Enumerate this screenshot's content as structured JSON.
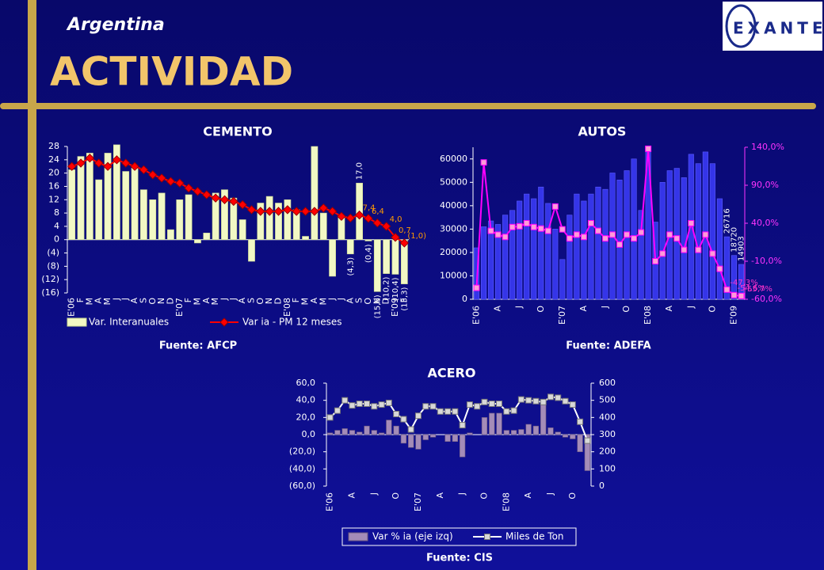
{
  "header": {
    "country": "Argentina",
    "title": "ACTIVIDAD",
    "logo": "EXANTE"
  },
  "chart_data": [
    {
      "type": "combo",
      "title": "CEMENTO",
      "source": "Fuente: AFCP",
      "legend": "bottom",
      "categories": [
        "E'06",
        "F",
        "M",
        "A",
        "M",
        "J",
        "J",
        "A",
        "S",
        "O",
        "N",
        "D",
        "E'07",
        "F",
        "M",
        "A",
        "M",
        "J",
        "J",
        "A",
        "S",
        "O",
        "N",
        "D",
        "E'08",
        "F",
        "M",
        "A",
        "M",
        "J",
        "J",
        "A",
        "S",
        "O",
        "N",
        "D",
        "E'09",
        "F"
      ],
      "ylim": [
        -16,
        28
      ],
      "yticks": [
        28,
        24,
        20,
        16,
        12,
        8,
        4,
        0,
        {
          "value": -4,
          "label": "(4)"
        },
        {
          "value": -8,
          "label": "(8)"
        },
        {
          "value": -12,
          "label": "(12)"
        },
        {
          "value": -16,
          "label": "(16)"
        }
      ],
      "series": [
        {
          "name": "Var. Interanuales",
          "type": "bar",
          "color": "#f2f8c4",
          "values": [
            21,
            25,
            26,
            18,
            26,
            28.5,
            20.5,
            21.5,
            15,
            12,
            14,
            3,
            12,
            13.5,
            -1,
            2,
            14,
            15,
            12.5,
            6,
            -6.5,
            11,
            13,
            11,
            12,
            9,
            1,
            28,
            8,
            -11,
            7,
            -4.3,
            17.0,
            -0.4,
            -15.6,
            -10.2,
            -10.4,
            -13.3
          ],
          "value_labels": [
            null,
            null,
            null,
            null,
            null,
            null,
            null,
            null,
            null,
            null,
            null,
            null,
            null,
            null,
            null,
            null,
            null,
            null,
            null,
            null,
            null,
            null,
            null,
            null,
            null,
            null,
            null,
            null,
            null,
            null,
            null,
            "(4,3)",
            "17,0",
            "(0,4)",
            "(15,6)",
            "(10,2)",
            "(10,4)",
            "(13,3)"
          ]
        },
        {
          "name": "Var ia - PM 12 meses",
          "type": "line",
          "color": "#ff0000",
          "marker": "diamond",
          "values": [
            22,
            23,
            24.5,
            23,
            22,
            24,
            23,
            22,
            21,
            19.5,
            18.5,
            17.5,
            17,
            15.5,
            14.5,
            13.5,
            12.5,
            12,
            11.5,
            10.5,
            9,
            8.5,
            8.5,
            8.5,
            9,
            8.5,
            8.5,
            8.5,
            9.5,
            8.5,
            7,
            6.5,
            7.4,
            6.4,
            5,
            4.0,
            0.7,
            -1.0
          ],
          "value_labels": [
            null,
            null,
            null,
            null,
            null,
            null,
            null,
            null,
            null,
            null,
            null,
            null,
            null,
            null,
            null,
            null,
            null,
            null,
            null,
            null,
            null,
            null,
            null,
            null,
            null,
            null,
            null,
            null,
            null,
            null,
            null,
            null,
            "7,4",
            "6,4",
            null,
            "4,0",
            "0,7",
            "(1,0)"
          ]
        }
      ]
    },
    {
      "type": "combo",
      "title": "AUTOS",
      "source": "Fuente: ADEFA",
      "categories": [
        "E'06",
        null,
        null,
        "A",
        null,
        null,
        "J",
        null,
        null,
        "O",
        null,
        null,
        "E'07",
        null,
        null,
        "A",
        null,
        null,
        "J",
        null,
        null,
        "O",
        null,
        null,
        "E'08",
        null,
        null,
        "A",
        null,
        null,
        "J",
        null,
        null,
        "O",
        null,
        null,
        "E'09",
        null
      ],
      "ylim": [
        0,
        65000
      ],
      "yticks": [
        0,
        10000,
        20000,
        30000,
        40000,
        50000,
        60000
      ],
      "y2lim": [
        -60,
        140
      ],
      "y2ticks": [
        {
          "value": 140,
          "label": "140,0%"
        },
        {
          "value": 90,
          "label": "90,0%"
        },
        {
          "value": 40,
          "label": "40,0%"
        },
        {
          "value": -10,
          "label": "-10,0%"
        },
        {
          "value": -60,
          "label": "-60,0%"
        }
      ],
      "series": [
        {
          "type": "bar",
          "color": "#3535e8",
          "values": [
            22000,
            31000,
            33500,
            32000,
            36000,
            38000,
            42000,
            45000,
            43000,
            48000,
            41000,
            30000,
            17000,
            36000,
            45000,
            42000,
            45000,
            48000,
            47000,
            54000,
            51000,
            55000,
            60000,
            38000,
            63000,
            33000,
            50000,
            55000,
            56000,
            52000,
            62000,
            58000,
            63000,
            58000,
            43000,
            26716,
            18720,
            14903
          ],
          "value_labels": [
            null,
            null,
            null,
            null,
            null,
            null,
            null,
            null,
            null,
            null,
            null,
            null,
            null,
            null,
            null,
            null,
            null,
            null,
            null,
            null,
            null,
            null,
            null,
            null,
            null,
            null,
            null,
            null,
            null,
            null,
            null,
            null,
            null,
            null,
            null,
            "26716",
            "18720",
            "14903"
          ]
        },
        {
          "type": "line",
          "axis": "y2",
          "color": "#ff00ff",
          "marker": "square",
          "values": [
            -45,
            120,
            30,
            25,
            22,
            35,
            36,
            40,
            35,
            33,
            30,
            62,
            32,
            20,
            25,
            22,
            40,
            30,
            20,
            25,
            12,
            25,
            20,
            28,
            138,
            -10,
            0,
            25,
            20,
            5,
            40,
            5,
            25,
            0,
            -20,
            -47.3,
            -54.6,
            -55.7
          ],
          "value_labels": [
            null,
            null,
            null,
            null,
            null,
            null,
            null,
            null,
            null,
            null,
            null,
            null,
            null,
            null,
            null,
            null,
            null,
            null,
            null,
            null,
            null,
            null,
            null,
            null,
            null,
            null,
            null,
            null,
            null,
            null,
            null,
            null,
            null,
            null,
            null,
            "-47,3%",
            "-54,6%",
            "-55,7%"
          ]
        }
      ]
    },
    {
      "type": "combo",
      "title": "ACERO",
      "source": "Fuente: CIS",
      "legend": "bottom",
      "categories": [
        "E'06",
        null,
        null,
        "A",
        null,
        null,
        "J",
        null,
        null,
        "O",
        null,
        null,
        "E'07",
        null,
        null,
        "A",
        null,
        null,
        "J",
        null,
        null,
        "O",
        null,
        null,
        "E'08",
        null,
        null,
        "A",
        null,
        null,
        "J",
        null,
        null,
        "O",
        null,
        null
      ],
      "ylim": [
        -60,
        60
      ],
      "yticks": [
        {
          "value": 60,
          "label": "60,0"
        },
        {
          "value": 40,
          "label": "40,0"
        },
        {
          "value": 20,
          "label": "20,0"
        },
        {
          "value": 0,
          "label": "0,0"
        },
        {
          "value": -20,
          "label": "(20,0)"
        },
        {
          "value": -40,
          "label": "(40,0)"
        },
        {
          "value": -60,
          "label": "(60,0)"
        }
      ],
      "y2lim": [
        0,
        600
      ],
      "y2ticks": [
        600,
        500,
        400,
        300,
        200,
        100,
        0
      ],
      "series": [
        {
          "name": "Var % ia (eje izq)",
          "type": "bar",
          "color": "#a48cb8",
          "values": [
            2,
            5,
            7,
            5,
            3,
            10,
            5,
            2,
            17,
            10,
            -10,
            -15,
            -17,
            -6,
            -3,
            0,
            -8,
            -8,
            -26,
            2,
            0,
            20,
            25,
            25,
            5,
            5,
            6,
            12,
            10,
            38,
            8,
            3,
            -3,
            -5,
            -20,
            -42
          ]
        },
        {
          "name": "Miles de Ton",
          "type": "line",
          "axis": "y2",
          "color": "#ffffff",
          "marker": "square",
          "values": [
            400,
            440,
            500,
            470,
            480,
            480,
            465,
            475,
            485,
            420,
            390,
            330,
            410,
            465,
            465,
            435,
            435,
            435,
            355,
            475,
            465,
            490,
            480,
            480,
            435,
            440,
            505,
            500,
            495,
            490,
            520,
            515,
            495,
            475,
            375,
            265
          ]
        }
      ]
    }
  ]
}
